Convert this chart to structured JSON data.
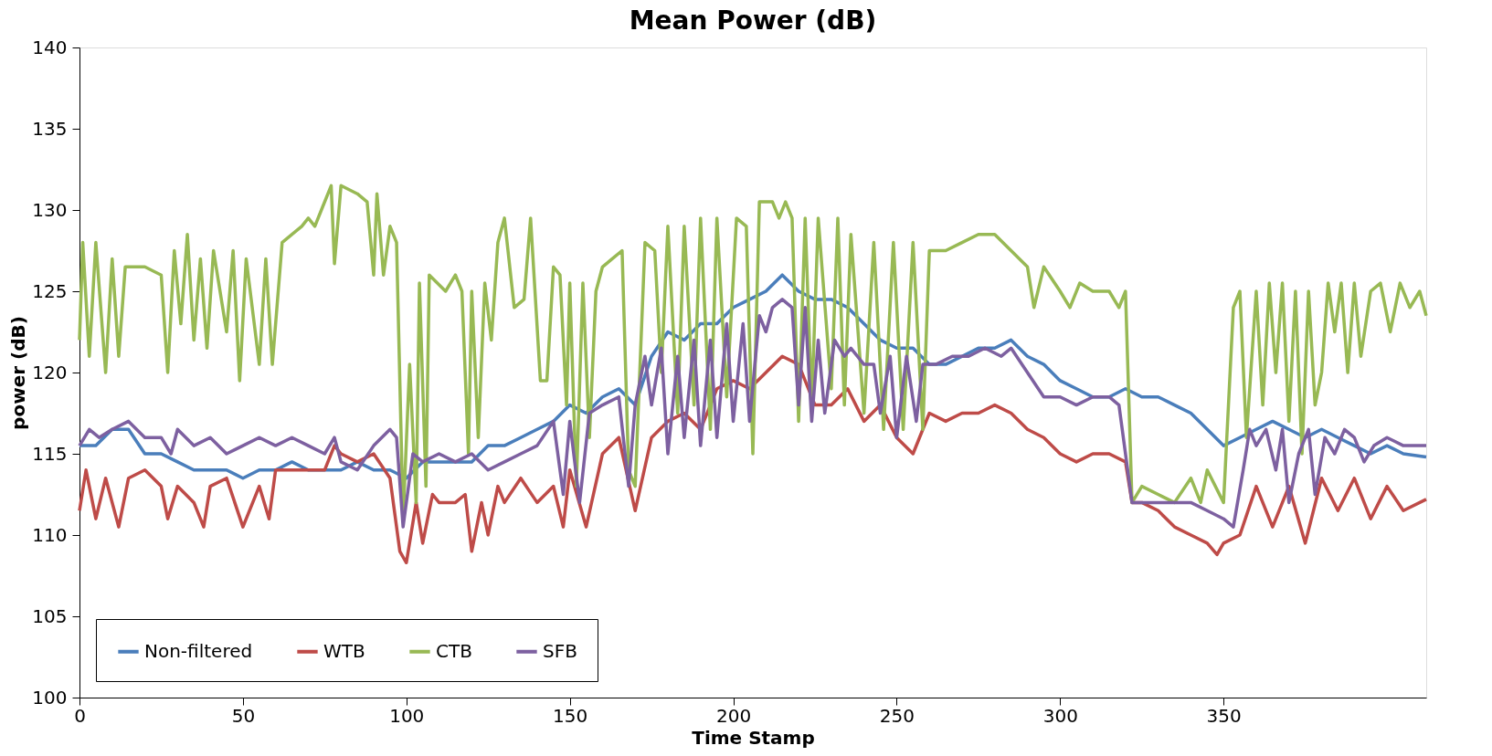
{
  "chart_data": {
    "type": "line",
    "title": "Mean Power (dB)",
    "xlabel": "Time Stamp",
    "ylabel": "power (dB)",
    "xlim": [
      0,
      412
    ],
    "xticks": [
      0,
      50,
      100,
      150,
      200,
      250,
      300,
      350
    ],
    "ylim": [
      100,
      140
    ],
    "yticks": [
      100,
      105,
      110,
      115,
      120,
      125,
      130,
      135,
      140
    ],
    "grid": false,
    "legend": "bottom left",
    "series": [
      {
        "name": "Non-filtered",
        "color": "#4a7ebb",
        "x": [
          0,
          5,
          10,
          15,
          20,
          25,
          30,
          35,
          40,
          45,
          50,
          55,
          60,
          65,
          70,
          75,
          80,
          85,
          90,
          95,
          100,
          105,
          110,
          115,
          120,
          125,
          130,
          135,
          140,
          145,
          150,
          155,
          160,
          165,
          170,
          175,
          180,
          185,
          190,
          195,
          200,
          205,
          210,
          215,
          220,
          225,
          230,
          235,
          240,
          245,
          250,
          255,
          260,
          265,
          270,
          275,
          280,
          285,
          290,
          295,
          300,
          305,
          310,
          315,
          320,
          325,
          330,
          335,
          340,
          345,
          350,
          355,
          360,
          365,
          370,
          375,
          380,
          385,
          390,
          395,
          400,
          405,
          412
        ],
        "values": [
          115.5,
          115.5,
          116.5,
          116.5,
          115,
          115,
          114.5,
          114,
          114,
          114,
          113.5,
          114,
          114,
          114.5,
          114,
          114,
          114,
          114.5,
          114,
          114,
          113.5,
          114.5,
          114.5,
          114.5,
          114.5,
          115.5,
          115.5,
          116,
          116.5,
          117,
          118,
          117.5,
          118.5,
          119,
          118,
          121,
          122.5,
          122,
          123,
          123,
          124,
          124.5,
          125,
          126,
          125,
          124.5,
          124.5,
          124,
          123,
          122,
          121.5,
          121.5,
          120.5,
          120.5,
          121,
          121.5,
          121.5,
          122,
          121,
          120.5,
          119.5,
          119,
          118.5,
          118.5,
          119,
          118.5,
          118.5,
          118,
          117.5,
          116.5,
          115.5,
          116,
          116.5,
          117,
          116.5,
          116,
          116.5,
          116,
          115.5,
          115,
          115.5,
          115,
          114.8
        ]
      },
      {
        "name": "WTB",
        "color": "#be4b48",
        "x": [
          0,
          2,
          5,
          8,
          12,
          15,
          20,
          25,
          27,
          30,
          35,
          38,
          40,
          45,
          50,
          55,
          58,
          60,
          65,
          70,
          75,
          78,
          80,
          85,
          90,
          95,
          98,
          100,
          103,
          105,
          108,
          110,
          115,
          118,
          120,
          123,
          125,
          128,
          130,
          135,
          140,
          145,
          148,
          150,
          155,
          160,
          165,
          170,
          175,
          180,
          185,
          190,
          195,
          200,
          205,
          210,
          215,
          220,
          225,
          230,
          235,
          240,
          245,
          250,
          255,
          260,
          265,
          270,
          275,
          280,
          285,
          290,
          295,
          300,
          305,
          310,
          315,
          320,
          322,
          325,
          330,
          335,
          340,
          345,
          348,
          350,
          355,
          360,
          365,
          370,
          375,
          380,
          385,
          390,
          395,
          400,
          405,
          412
        ],
        "values": [
          111.5,
          114,
          111,
          113.5,
          110.5,
          113.5,
          114,
          113,
          111,
          113,
          112,
          110.5,
          113,
          113.5,
          110.5,
          113,
          111,
          114,
          114,
          114,
          114,
          115.5,
          115,
          114.5,
          115,
          113.5,
          109,
          108.3,
          112,
          109.5,
          112.5,
          112,
          112,
          112.5,
          109,
          112,
          110,
          113,
          112,
          113.5,
          112,
          113,
          110.5,
          114,
          110.5,
          115,
          116,
          111.5,
          116,
          117,
          117.5,
          116.5,
          119,
          119.5,
          119,
          120,
          121,
          120.5,
          118,
          118,
          119,
          117,
          118,
          116,
          115,
          117.5,
          117,
          117.5,
          117.5,
          118,
          117.5,
          116.5,
          116,
          115,
          114.5,
          115,
          115,
          114.5,
          112,
          112,
          111.5,
          110.5,
          110,
          109.5,
          108.8,
          109.5,
          110,
          113,
          110.5,
          113,
          109.5,
          113.5,
          111.5,
          113.5,
          111,
          113,
          111.5,
          112.2
        ]
      },
      {
        "name": "CTB",
        "color": "#98b954",
        "x": [
          0,
          1,
          3,
          5,
          8,
          10,
          12,
          14,
          20,
          25,
          27,
          29,
          31,
          33,
          35,
          37,
          39,
          41,
          45,
          47,
          49,
          51,
          55,
          57,
          59,
          62,
          68,
          70,
          72,
          74,
          77,
          78,
          80,
          85,
          88,
          90,
          91,
          93,
          95,
          97,
          99,
          101,
          103,
          104,
          106,
          107,
          112,
          115,
          117,
          119,
          120,
          122,
          124,
          126,
          128,
          130,
          133,
          136,
          138,
          141,
          143,
          145,
          147,
          149,
          150,
          152,
          154,
          156,
          158,
          160,
          163,
          166,
          168,
          170,
          173,
          176,
          178,
          180,
          183,
          185,
          188,
          190,
          193,
          195,
          198,
          201,
          204,
          206,
          208,
          212,
          214,
          216,
          218,
          220,
          222,
          224,
          226,
          230,
          232,
          234,
          236,
          240,
          243,
          246,
          249,
          252,
          255,
          258,
          260,
          265,
          270,
          275,
          280,
          285,
          290,
          292,
          295,
          300,
          303,
          306,
          310,
          315,
          318,
          320,
          322,
          325,
          330,
          335,
          340,
          343,
          345,
          350,
          353,
          355,
          357,
          360,
          362,
          364,
          366,
          368,
          370,
          372,
          374,
          376,
          378,
          380,
          382,
          384,
          386,
          388,
          390,
          392,
          395,
          398,
          401,
          404,
          407,
          410,
          412
        ],
        "values": [
          122,
          128,
          121,
          128,
          120,
          127,
          121,
          126.5,
          126.5,
          126,
          120,
          127.5,
          123,
          128.5,
          122,
          127,
          121.5,
          127.5,
          122.5,
          127.5,
          119.5,
          127,
          120.5,
          127,
          120.5,
          128,
          129,
          129.5,
          129,
          130,
          131.5,
          126.7,
          131.5,
          131,
          130.5,
          126,
          131,
          126,
          129,
          128,
          111,
          120.5,
          112,
          125.5,
          113,
          126,
          125,
          126,
          125,
          115,
          125,
          116,
          125.5,
          122,
          128,
          129.5,
          124,
          124.5,
          129.5,
          119.5,
          119.5,
          126.5,
          126,
          118,
          125.5,
          113,
          125.5,
          116,
          125,
          126.5,
          127,
          127.5,
          114,
          113,
          128,
          127.5,
          120,
          129,
          117.5,
          129,
          118,
          129.5,
          116.5,
          129.5,
          118.5,
          129.5,
          129,
          115,
          130.5,
          130.5,
          129.5,
          130.5,
          129.5,
          117,
          129.5,
          118,
          129.5,
          119,
          129.5,
          118,
          128.5,
          117.5,
          128,
          116.5,
          128,
          116.5,
          128,
          116.5,
          127.5,
          127.5,
          128,
          128.5,
          128.5,
          127.5,
          126.5,
          124,
          126.5,
          125,
          124,
          125.5,
          125,
          125,
          124,
          125,
          112,
          113,
          112.5,
          112,
          113.5,
          112,
          114,
          112,
          124,
          125,
          116,
          125,
          118,
          125.5,
          120,
          125.5,
          117,
          125,
          115,
          125,
          118,
          120,
          125.5,
          122.5,
          125.5,
          120,
          125.5,
          121,
          125,
          125.5,
          122.5,
          125.5,
          124,
          125,
          123.5
        ]
      },
      {
        "name": "SFB",
        "color": "#7d60a0",
        "x": [
          0,
          3,
          6,
          10,
          15,
          20,
          25,
          28,
          30,
          35,
          40,
          45,
          50,
          55,
          60,
          65,
          70,
          75,
          78,
          80,
          85,
          90,
          95,
          97,
          99,
          102,
          105,
          110,
          115,
          120,
          125,
          130,
          135,
          140,
          145,
          148,
          150,
          153,
          156,
          160,
          165,
          168,
          170,
          173,
          175,
          178,
          180,
          183,
          185,
          188,
          190,
          193,
          195,
          198,
          200,
          203,
          205,
          208,
          210,
          212,
          215,
          218,
          220,
          222,
          224,
          226,
          228,
          231,
          234,
          236,
          240,
          243,
          245,
          248,
          250,
          253,
          256,
          258,
          262,
          267,
          272,
          277,
          282,
          285,
          290,
          295,
          300,
          305,
          310,
          315,
          318,
          320,
          322,
          325,
          330,
          335,
          340,
          345,
          350,
          353,
          356,
          358,
          360,
          363,
          366,
          368,
          370,
          373,
          376,
          378,
          381,
          384,
          387,
          390,
          393,
          396,
          400,
          405,
          412
        ],
        "values": [
          115.5,
          116.5,
          116,
          116.5,
          117,
          116,
          116,
          115,
          116.5,
          115.5,
          116,
          115,
          115.5,
          116,
          115.5,
          116,
          115.5,
          115,
          116,
          114.5,
          114,
          115.5,
          116.5,
          116,
          110.5,
          115,
          114.5,
          115,
          114.5,
          115,
          114,
          114.5,
          115,
          115.5,
          117,
          112.5,
          117,
          112,
          117.5,
          118,
          118.5,
          113,
          118,
          121,
          118,
          121.5,
          115,
          121,
          116,
          122,
          115.5,
          122,
          116,
          123,
          117,
          123,
          117,
          123.5,
          122.5,
          124,
          124.5,
          124,
          118,
          124,
          117,
          122,
          117.5,
          122,
          121,
          121.5,
          120.5,
          120.5,
          117.5,
          121,
          116,
          121,
          117,
          120.5,
          120.5,
          121,
          121,
          121.5,
          121,
          121.5,
          120,
          118.5,
          118.5,
          118,
          118.5,
          118.5,
          118,
          115,
          112,
          112,
          112,
          112,
          112,
          111.5,
          111,
          110.5,
          114,
          116.5,
          115.5,
          116.5,
          114,
          116.5,
          112,
          115,
          116.5,
          112.5,
          116,
          115,
          116.5,
          116,
          114.5,
          115.5,
          116,
          115.5,
          115.5
        ]
      }
    ]
  }
}
